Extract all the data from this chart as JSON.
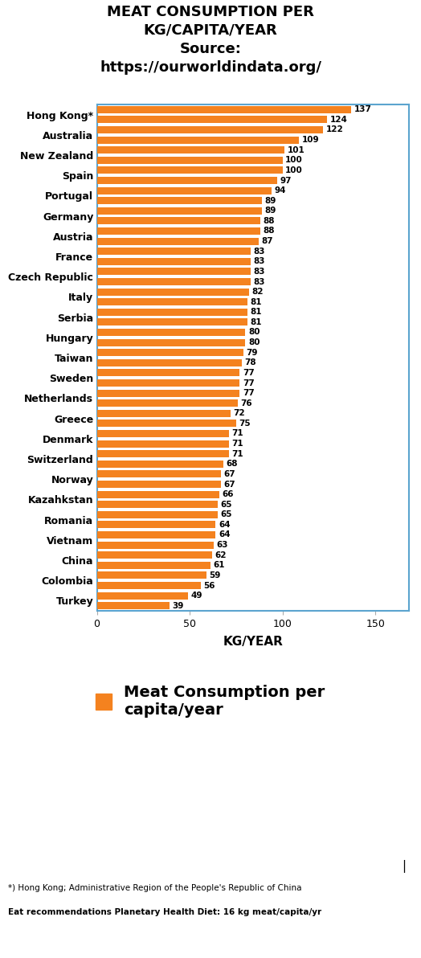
{
  "title_line1": "MEAT CONSUMPTION PER",
  "title_line2": "KG/CAPITA/YEAR",
  "title_line3": "Source:",
  "title_line4": "https://ourworldindata.org/",
  "xlabel": "KG/YEAR",
  "bar_color": "#F4821F",
  "legend_label": "Meat Consumption per\ncapita/year",
  "footnote1": "*) Hong Kong; Administrative Region of the People's Republic of China",
  "footnote2": "Eat recommendations Planetary Health Diet: 16 kg meat/capita/yr",
  "countries": [
    "Hong Kong*",
    "Australia",
    "New Zealand",
    "Spain",
    "Portugal",
    "Germany",
    "Austria",
    "France",
    "Czech Republic",
    "Italy",
    "Serbia",
    "Hungary",
    "Taiwan",
    "Sweden",
    "Netherlands",
    "Greece",
    "Denmark",
    "Switzerland",
    "Norway",
    "Kazahkstan",
    "Romania",
    "Vietnam",
    "China",
    "Colombia",
    "Turkey"
  ],
  "values1": [
    137,
    122,
    101,
    100,
    94,
    89,
    88,
    83,
    83,
    82,
    81,
    80,
    79,
    77,
    77,
    72,
    71,
    71,
    67,
    66,
    65,
    64,
    62,
    59,
    49
  ],
  "values2": [
    124,
    109,
    100,
    97,
    89,
    88,
    87,
    83,
    83,
    81,
    81,
    80,
    78,
    77,
    76,
    75,
    71,
    68,
    67,
    65,
    64,
    63,
    61,
    56,
    39
  ],
  "xlim_max": 168,
  "xticks": [
    0,
    50,
    100,
    150
  ],
  "xtick_labels": [
    "0",
    "50",
    "100",
    "150"
  ],
  "spine_color": "#5BA4CF",
  "label_fontsize": 9,
  "value_fontsize": 7.5,
  "title_fontsize": 13,
  "xlabel_fontsize": 11,
  "legend_fontsize": 14,
  "footnote_fontsize": 7.5
}
